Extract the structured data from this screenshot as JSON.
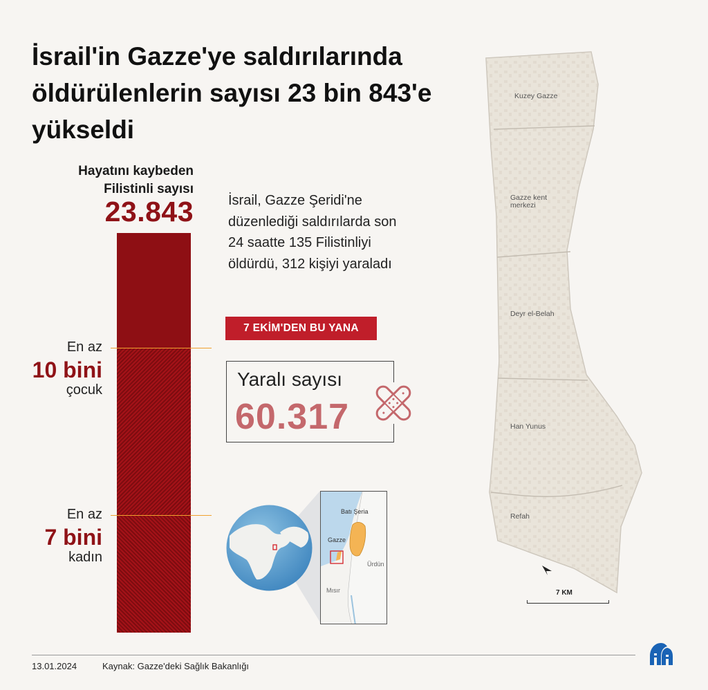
{
  "title": "İsrail'in Gazze'ye saldırılarında öldürülenlerin sayısı 23 bin 843'e yükseldi",
  "deaths": {
    "label": "Hayatını kaybeden Filistinli sayısı",
    "value": "23.843",
    "total": 23843
  },
  "children": {
    "pre": "En az",
    "value": "10 bini",
    "post": "çocuk",
    "count": 10000
  },
  "women": {
    "pre": "En az",
    "value": "7 bini",
    "post": "kadın",
    "count": 7000
  },
  "description": "İsrail, Gazze Şeridi'ne düzenlediği saldırılarda son 24 saatte 135 Filistinliyi öldürdü, 312 kişiyi yaraladı",
  "since_badge": "7 EKİM'DEN  BU YANA",
  "wounded": {
    "label": "Yaralı sayısı",
    "value": "60.317"
  },
  "inset_map": {
    "west_bank": "Batı Şeria",
    "gaza": "Gazze",
    "jordan": "Ürdün",
    "egypt": "Mısır"
  },
  "gaza_map": {
    "regions": [
      "Kuzey Gazze",
      "Gazze kent merkezi",
      "Deyr el-Belah",
      "Han Yunus",
      "Refah"
    ],
    "scale": "7 KM"
  },
  "footer": {
    "date": "13.01.2024",
    "source": "Kaynak: Gazze'deki Sağlık Bakanlığı"
  },
  "icons": {
    "bandage": "bandage-icon",
    "globe": "globe-icon",
    "logo": "aa-logo-icon",
    "north": "north-arrow-icon"
  },
  "colors": {
    "accent": "#8f1217",
    "badge": "#c01e2a",
    "wounded": "#c4686c",
    "marker": "#f0a12e"
  }
}
